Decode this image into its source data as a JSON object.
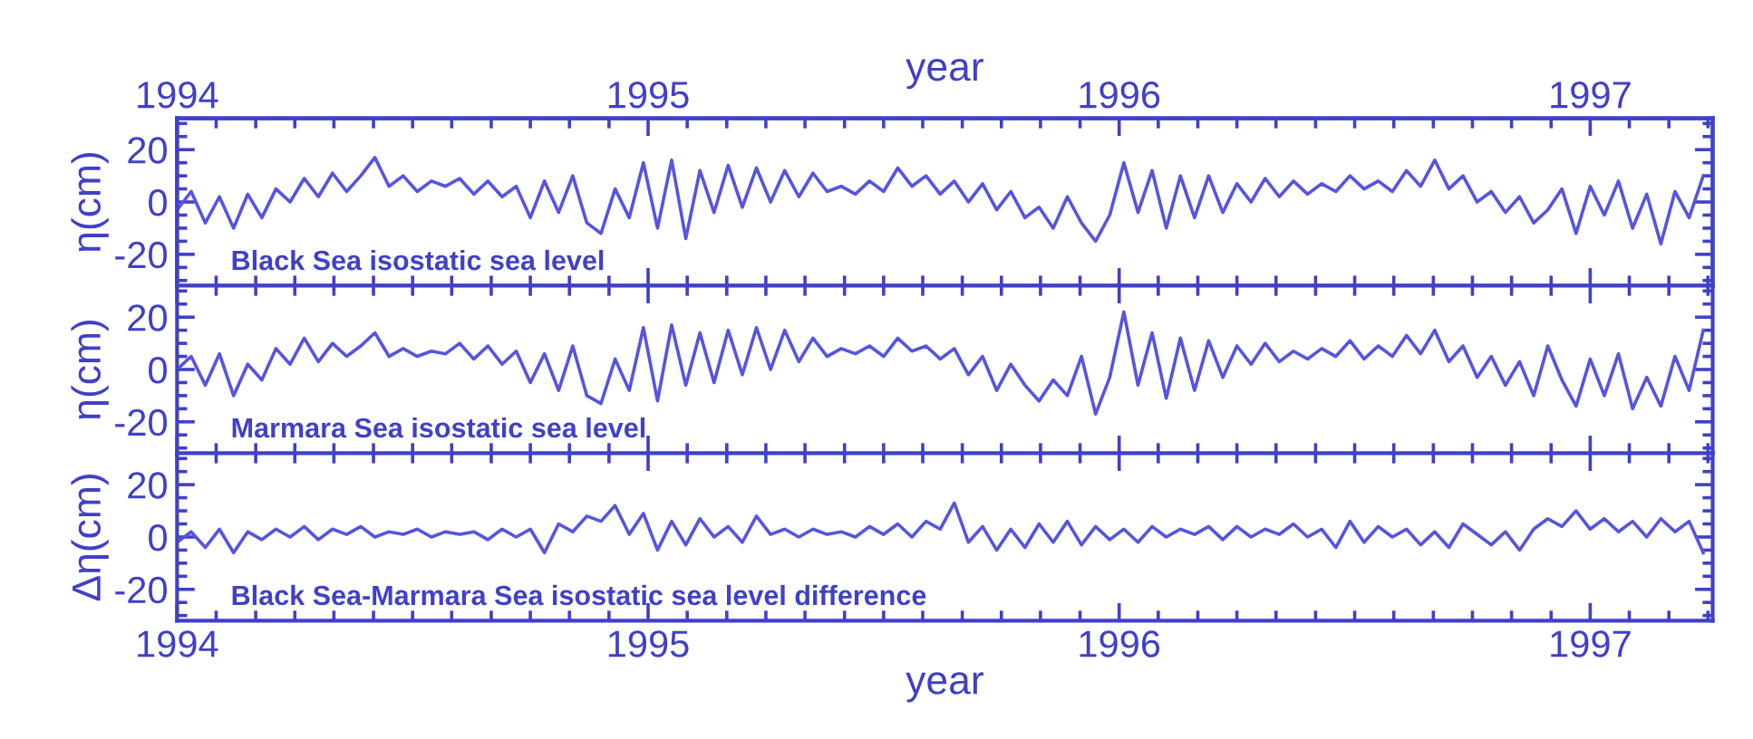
{
  "chart_data": [
    {
      "type": "line",
      "ylabel": "η(cm)",
      "x2label": "year",
      "annotations": [
        "Black Sea isostatic sea level"
      ],
      "tick_labels": "y",
      "x": [
        1994.0,
        1994.03,
        1994.06,
        1994.09,
        1994.12,
        1994.15,
        1994.18,
        1994.21,
        1994.24,
        1994.27,
        1994.3,
        1994.33,
        1994.36,
        1994.39,
        1994.42,
        1994.45,
        1994.48,
        1994.51,
        1994.54,
        1994.57,
        1994.6,
        1994.63,
        1994.66,
        1994.69,
        1994.72,
        1994.75,
        1994.78,
        1994.81,
        1994.84,
        1994.87,
        1994.9,
        1994.93,
        1994.96,
        1994.99,
        1995.02,
        1995.05,
        1995.08,
        1995.11,
        1995.14,
        1995.17,
        1995.2,
        1995.23,
        1995.26,
        1995.29,
        1995.32,
        1995.35,
        1995.38,
        1995.41,
        1995.44,
        1995.47,
        1995.5,
        1995.53,
        1995.56,
        1995.59,
        1995.62,
        1995.65,
        1995.68,
        1995.71,
        1995.74,
        1995.77,
        1995.8,
        1995.83,
        1995.86,
        1995.89,
        1995.92,
        1995.95,
        1995.98,
        1996.01,
        1996.04,
        1996.07,
        1996.1,
        1996.13,
        1996.16,
        1996.19,
        1996.22,
        1996.25,
        1996.28,
        1996.31,
        1996.34,
        1996.37,
        1996.4,
        1996.43,
        1996.46,
        1996.49,
        1996.52,
        1996.55,
        1996.58,
        1996.61,
        1996.64,
        1996.67,
        1996.7,
        1996.73,
        1996.76,
        1996.79,
        1996.82,
        1996.85,
        1996.88,
        1996.91,
        1996.94,
        1996.97,
        1997.0,
        1997.03,
        1997.06,
        1997.09,
        1997.12,
        1997.15,
        1997.18,
        1997.21,
        1997.24
      ],
      "series": [
        {
          "color": "#5555e0",
          "values": [
            -3,
            4,
            -8,
            2,
            -10,
            3,
            -6,
            5,
            0,
            9,
            2,
            11,
            4,
            10,
            17,
            6,
            10,
            4,
            8,
            6,
            9,
            3,
            8,
            2,
            6,
            -6,
            8,
            -4,
            10,
            -8,
            -12,
            5,
            -6,
            15,
            -10,
            16,
            -14,
            12,
            -4,
            14,
            -2,
            13,
            0,
            12,
            2,
            11,
            4,
            6,
            3,
            8,
            4,
            13,
            6,
            10,
            3,
            8,
            0,
            7,
            -3,
            4,
            -6,
            -2,
            -10,
            2,
            -8,
            -15,
            -5,
            15,
            -4,
            12,
            -10,
            10,
            -6,
            10,
            -4,
            7,
            0,
            9,
            2,
            8,
            3,
            7,
            4,
            10,
            5,
            8,
            4,
            12,
            6,
            16,
            5,
            10,
            0,
            4,
            -4,
            2,
            -8,
            -3,
            5,
            -12,
            6,
            -5,
            8,
            -10,
            3,
            -16,
            4,
            -6,
            10
          ]
        }
      ],
      "xlim": [
        1994,
        1997.26
      ],
      "x2lim": [
        1994,
        1997.26
      ],
      "xticks": [
        1994,
        {
          "value": 1994.083,
          "label": null
        },
        {
          "value": 1994.167,
          "label": null
        },
        {
          "value": 1994.25,
          "label": null
        },
        {
          "value": 1994.333,
          "label": null
        },
        {
          "value": 1994.417,
          "label": null
        },
        {
          "value": 1994.5,
          "label": null
        },
        {
          "value": 1994.583,
          "label": null
        },
        {
          "value": 1994.667,
          "label": null
        },
        {
          "value": 1994.75,
          "label": null
        },
        {
          "value": 1994.833,
          "label": null
        },
        {
          "value": 1994.917,
          "label": null
        },
        1995,
        {
          "value": 1995.083,
          "label": null
        },
        {
          "value": 1995.167,
          "label": null
        },
        {
          "value": 1995.25,
          "label": null
        },
        {
          "value": 1995.333,
          "label": null
        },
        {
          "value": 1995.417,
          "label": null
        },
        {
          "value": 1995.5,
          "label": null
        },
        {
          "value": 1995.583,
          "label": null
        },
        {
          "value": 1995.667,
          "label": null
        },
        {
          "value": 1995.75,
          "label": null
        },
        {
          "value": 1995.833,
          "label": null
        },
        {
          "value": 1995.917,
          "label": null
        },
        1996,
        {
          "value": 1996.083,
          "label": null
        },
        {
          "value": 1996.167,
          "label": null
        },
        {
          "value": 1996.25,
          "label": null
        },
        {
          "value": 1996.333,
          "label": null
        },
        {
          "value": 1996.417,
          "label": null
        },
        {
          "value": 1996.5,
          "label": null
        },
        {
          "value": 1996.583,
          "label": null
        },
        {
          "value": 1996.667,
          "label": null
        },
        {
          "value": 1996.75,
          "label": null
        },
        {
          "value": 1996.833,
          "label": null
        },
        {
          "value": 1996.917,
          "label": null
        },
        1997,
        {
          "value": 1997.083,
          "label": null
        },
        {
          "value": 1997.167,
          "label": null
        },
        {
          "value": 1997.25,
          "label": null
        }
      ],
      "x2ticks": [
        1994,
        {
          "value": 1994.083,
          "label": null
        },
        {
          "value": 1994.167,
          "label": null
        },
        {
          "value": 1994.25,
          "label": null
        },
        {
          "value": 1994.333,
          "label": null
        },
        {
          "value": 1994.417,
          "label": null
        },
        {
          "value": 1994.5,
          "label": null
        },
        {
          "value": 1994.583,
          "label": null
        },
        {
          "value": 1994.667,
          "label": null
        },
        {
          "value": 1994.75,
          "label": null
        },
        {
          "value": 1994.833,
          "label": null
        },
        {
          "value": 1994.917,
          "label": null
        },
        1995,
        {
          "value": 1995.083,
          "label": null
        },
        {
          "value": 1995.167,
          "label": null
        },
        {
          "value": 1995.25,
          "label": null
        },
        {
          "value": 1995.333,
          "label": null
        },
        {
          "value": 1995.417,
          "label": null
        },
        {
          "value": 1995.5,
          "label": null
        },
        {
          "value": 1995.583,
          "label": null
        },
        {
          "value": 1995.667,
          "label": null
        },
        {
          "value": 1995.75,
          "label": null
        },
        {
          "value": 1995.833,
          "label": null
        },
        {
          "value": 1995.917,
          "label": null
        },
        1996,
        {
          "value": 1996.083,
          "label": null
        },
        {
          "value": 1996.167,
          "label": null
        },
        {
          "value": 1996.25,
          "label": null
        },
        {
          "value": 1996.333,
          "label": null
        },
        {
          "value": 1996.417,
          "label": null
        },
        {
          "value": 1996.5,
          "label": null
        },
        {
          "value": 1996.583,
          "label": null
        },
        {
          "value": 1996.667,
          "label": null
        },
        {
          "value": 1996.75,
          "label": null
        },
        {
          "value": 1996.833,
          "label": null
        },
        {
          "value": 1996.917,
          "label": null
        },
        1997,
        {
          "value": 1997.083,
          "label": null
        },
        {
          "value": 1997.167,
          "label": null
        },
        {
          "value": 1997.25,
          "label": null
        }
      ],
      "ylim": [
        -32,
        32
      ],
      "yticks": [
        {
          "value": -30,
          "label": null
        },
        {
          "value": -25,
          "label": null
        },
        -20,
        {
          "value": -15,
          "label": null
        },
        {
          "value": -10,
          "label": null
        },
        {
          "value": -5,
          "label": null
        },
        0,
        {
          "value": 5,
          "label": null
        },
        {
          "value": 10,
          "label": null
        },
        {
          "value": 15,
          "label": null
        },
        20,
        {
          "value": 25,
          "label": null
        },
        {
          "value": 30,
          "label": null
        }
      ]
    },
    {
      "type": "line",
      "ylabel": "η(cm)",
      "annotations": [
        "Marmara Sea isostatic sea level"
      ],
      "tick_labels": "y",
      "x": [
        1994.0,
        1994.03,
        1994.06,
        1994.09,
        1994.12,
        1994.15,
        1994.18,
        1994.21,
        1994.24,
        1994.27,
        1994.3,
        1994.33,
        1994.36,
        1994.39,
        1994.42,
        1994.45,
        1994.48,
        1994.51,
        1994.54,
        1994.57,
        1994.6,
        1994.63,
        1994.66,
        1994.69,
        1994.72,
        1994.75,
        1994.78,
        1994.81,
        1994.84,
        1994.87,
        1994.9,
        1994.93,
        1994.96,
        1994.99,
        1995.02,
        1995.05,
        1995.08,
        1995.11,
        1995.14,
        1995.17,
        1995.2,
        1995.23,
        1995.26,
        1995.29,
        1995.32,
        1995.35,
        1995.38,
        1995.41,
        1995.44,
        1995.47,
        1995.5,
        1995.53,
        1995.56,
        1995.59,
        1995.62,
        1995.65,
        1995.68,
        1995.71,
        1995.74,
        1995.77,
        1995.8,
        1995.83,
        1995.86,
        1995.89,
        1995.92,
        1995.95,
        1995.98,
        1996.01,
        1996.04,
        1996.07,
        1996.1,
        1996.13,
        1996.16,
        1996.19,
        1996.22,
        1996.25,
        1996.28,
        1996.31,
        1996.34,
        1996.37,
        1996.4,
        1996.43,
        1996.46,
        1996.49,
        1996.52,
        1996.55,
        1996.58,
        1996.61,
        1996.64,
        1996.67,
        1996.7,
        1996.73,
        1996.76,
        1996.79,
        1996.82,
        1996.85,
        1996.88,
        1996.91,
        1996.94,
        1996.97,
        1997.0,
        1997.03,
        1997.06,
        1997.09,
        1997.12,
        1997.15,
        1997.18,
        1997.21,
        1997.24
      ],
      "series": [
        {
          "color": "#5555e0",
          "values": [
            0,
            5,
            -6,
            6,
            -10,
            2,
            -4,
            8,
            2,
            12,
            3,
            10,
            5,
            9,
            14,
            5,
            8,
            5,
            7,
            6,
            10,
            4,
            9,
            2,
            7,
            -5,
            6,
            -8,
            9,
            -10,
            -13,
            4,
            -8,
            16,
            -12,
            17,
            -6,
            14,
            -5,
            15,
            -2,
            16,
            0,
            15,
            3,
            12,
            5,
            8,
            6,
            9,
            5,
            12,
            7,
            9,
            4,
            8,
            -2,
            5,
            -8,
            2,
            -6,
            -12,
            -4,
            -10,
            5,
            -17,
            -3,
            22,
            -6,
            14,
            -11,
            12,
            -8,
            11,
            -3,
            9,
            2,
            10,
            3,
            7,
            4,
            8,
            5,
            11,
            4,
            9,
            5,
            13,
            6,
            15,
            3,
            9,
            -3,
            5,
            -6,
            3,
            -10,
            9,
            -4,
            -14,
            4,
            -10,
            6,
            -15,
            -3,
            -14,
            5,
            -8,
            15
          ]
        }
      ],
      "xlim": [
        1994,
        1997.26
      ],
      "xticks": [
        1994,
        {
          "value": 1994.083,
          "label": null
        },
        {
          "value": 1994.167,
          "label": null
        },
        {
          "value": 1994.25,
          "label": null
        },
        {
          "value": 1994.333,
          "label": null
        },
        {
          "value": 1994.417,
          "label": null
        },
        {
          "value": 1994.5,
          "label": null
        },
        {
          "value": 1994.583,
          "label": null
        },
        {
          "value": 1994.667,
          "label": null
        },
        {
          "value": 1994.75,
          "label": null
        },
        {
          "value": 1994.833,
          "label": null
        },
        {
          "value": 1994.917,
          "label": null
        },
        1995,
        {
          "value": 1995.083,
          "label": null
        },
        {
          "value": 1995.167,
          "label": null
        },
        {
          "value": 1995.25,
          "label": null
        },
        {
          "value": 1995.333,
          "label": null
        },
        {
          "value": 1995.417,
          "label": null
        },
        {
          "value": 1995.5,
          "label": null
        },
        {
          "value": 1995.583,
          "label": null
        },
        {
          "value": 1995.667,
          "label": null
        },
        {
          "value": 1995.75,
          "label": null
        },
        {
          "value": 1995.833,
          "label": null
        },
        {
          "value": 1995.917,
          "label": null
        },
        1996,
        {
          "value": 1996.083,
          "label": null
        },
        {
          "value": 1996.167,
          "label": null
        },
        {
          "value": 1996.25,
          "label": null
        },
        {
          "value": 1996.333,
          "label": null
        },
        {
          "value": 1996.417,
          "label": null
        },
        {
          "value": 1996.5,
          "label": null
        },
        {
          "value": 1996.583,
          "label": null
        },
        {
          "value": 1996.667,
          "label": null
        },
        {
          "value": 1996.75,
          "label": null
        },
        {
          "value": 1996.833,
          "label": null
        },
        {
          "value": 1996.917,
          "label": null
        },
        1997,
        {
          "value": 1997.083,
          "label": null
        },
        {
          "value": 1997.167,
          "label": null
        },
        {
          "value": 1997.25,
          "label": null
        }
      ],
      "ylim": [
        -32,
        32
      ],
      "yticks": [
        {
          "value": -30,
          "label": null
        },
        {
          "value": -25,
          "label": null
        },
        -20,
        {
          "value": -15,
          "label": null
        },
        {
          "value": -10,
          "label": null
        },
        {
          "value": -5,
          "label": null
        },
        0,
        {
          "value": 5,
          "label": null
        },
        {
          "value": 10,
          "label": null
        },
        {
          "value": 15,
          "label": null
        },
        20,
        {
          "value": 25,
          "label": null
        },
        {
          "value": 30,
          "label": null
        }
      ]
    },
    {
      "type": "line",
      "ylabel": "Δη(cm)",
      "xlabel": "year",
      "annotations": [
        "Black Sea-Marmara Sea isostatic sea level difference"
      ],
      "x": [
        1994.0,
        1994.03,
        1994.06,
        1994.09,
        1994.12,
        1994.15,
        1994.18,
        1994.21,
        1994.24,
        1994.27,
        1994.3,
        1994.33,
        1994.36,
        1994.39,
        1994.42,
        1994.45,
        1994.48,
        1994.51,
        1994.54,
        1994.57,
        1994.6,
        1994.63,
        1994.66,
        1994.69,
        1994.72,
        1994.75,
        1994.78,
        1994.81,
        1994.84,
        1994.87,
        1994.9,
        1994.93,
        1994.96,
        1994.99,
        1995.02,
        1995.05,
        1995.08,
        1995.11,
        1995.14,
        1995.17,
        1995.2,
        1995.23,
        1995.26,
        1995.29,
        1995.32,
        1995.35,
        1995.38,
        1995.41,
        1995.44,
        1995.47,
        1995.5,
        1995.53,
        1995.56,
        1995.59,
        1995.62,
        1995.65,
        1995.68,
        1995.71,
        1995.74,
        1995.77,
        1995.8,
        1995.83,
        1995.86,
        1995.89,
        1995.92,
        1995.95,
        1995.98,
        1996.01,
        1996.04,
        1996.07,
        1996.1,
        1996.13,
        1996.16,
        1996.19,
        1996.22,
        1996.25,
        1996.28,
        1996.31,
        1996.34,
        1996.37,
        1996.4,
        1996.43,
        1996.46,
        1996.49,
        1996.52,
        1996.55,
        1996.58,
        1996.61,
        1996.64,
        1996.67,
        1996.7,
        1996.73,
        1996.76,
        1996.79,
        1996.82,
        1996.85,
        1996.88,
        1996.91,
        1996.94,
        1996.97,
        1997.0,
        1997.03,
        1997.06,
        1997.09,
        1997.12,
        1997.15,
        1997.18,
        1997.21,
        1997.24
      ],
      "series": [
        {
          "color": "#5555e0",
          "values": [
            -2,
            2,
            -4,
            3,
            -6,
            2,
            -1,
            3,
            0,
            4,
            -1,
            3,
            1,
            4,
            0,
            2,
            1,
            3,
            0,
            2,
            1,
            2,
            -1,
            3,
            0,
            3,
            -6,
            5,
            2,
            8,
            6,
            12,
            1,
            9,
            -5,
            6,
            -3,
            7,
            0,
            4,
            -2,
            8,
            1,
            3,
            0,
            3,
            1,
            2,
            0,
            4,
            1,
            5,
            0,
            6,
            3,
            13,
            -2,
            4,
            -5,
            3,
            -4,
            5,
            -2,
            6,
            -3,
            4,
            -1,
            3,
            -2,
            4,
            0,
            3,
            1,
            4,
            -1,
            4,
            0,
            3,
            1,
            5,
            0,
            3,
            -4,
            6,
            -2,
            4,
            0,
            3,
            -3,
            2,
            -4,
            5,
            1,
            -3,
            2,
            -5,
            3,
            7,
            4,
            10,
            3,
            7,
            2,
            6,
            0,
            7,
            2,
            6,
            -6
          ]
        }
      ],
      "xlim": [
        1994,
        1997.26
      ],
      "xticks": [
        1994,
        {
          "value": 1994.083,
          "label": null
        },
        {
          "value": 1994.167,
          "label": null
        },
        {
          "value": 1994.25,
          "label": null
        },
        {
          "value": 1994.333,
          "label": null
        },
        {
          "value": 1994.417,
          "label": null
        },
        {
          "value": 1994.5,
          "label": null
        },
        {
          "value": 1994.583,
          "label": null
        },
        {
          "value": 1994.667,
          "label": null
        },
        {
          "value": 1994.75,
          "label": null
        },
        {
          "value": 1994.833,
          "label": null
        },
        {
          "value": 1994.917,
          "label": null
        },
        1995,
        {
          "value": 1995.083,
          "label": null
        },
        {
          "value": 1995.167,
          "label": null
        },
        {
          "value": 1995.25,
          "label": null
        },
        {
          "value": 1995.333,
          "label": null
        },
        {
          "value": 1995.417,
          "label": null
        },
        {
          "value": 1995.5,
          "label": null
        },
        {
          "value": 1995.583,
          "label": null
        },
        {
          "value": 1995.667,
          "label": null
        },
        {
          "value": 1995.75,
          "label": null
        },
        {
          "value": 1995.833,
          "label": null
        },
        {
          "value": 1995.917,
          "label": null
        },
        1996,
        {
          "value": 1996.083,
          "label": null
        },
        {
          "value": 1996.167,
          "label": null
        },
        {
          "value": 1996.25,
          "label": null
        },
        {
          "value": 1996.333,
          "label": null
        },
        {
          "value": 1996.417,
          "label": null
        },
        {
          "value": 1996.5,
          "label": null
        },
        {
          "value": 1996.583,
          "label": null
        },
        {
          "value": 1996.667,
          "label": null
        },
        {
          "value": 1996.75,
          "label": null
        },
        {
          "value": 1996.833,
          "label": null
        },
        {
          "value": 1996.917,
          "label": null
        },
        1997,
        {
          "value": 1997.083,
          "label": null
        },
        {
          "value": 1997.167,
          "label": null
        },
        {
          "value": 1997.25,
          "label": null
        }
      ],
      "ylim": [
        -32,
        32
      ],
      "yticks": [
        {
          "value": -30,
          "label": null
        },
        {
          "value": -25,
          "label": null
        },
        -20,
        {
          "value": -15,
          "label": null
        },
        {
          "value": -10,
          "label": null
        },
        {
          "value": -5,
          "label": null
        },
        0,
        {
          "value": 5,
          "label": null
        },
        {
          "value": 10,
          "label": null
        },
        {
          "value": 15,
          "label": null
        },
        20,
        {
          "value": 25,
          "label": null
        },
        {
          "value": 30,
          "label": null
        }
      ]
    }
  ]
}
